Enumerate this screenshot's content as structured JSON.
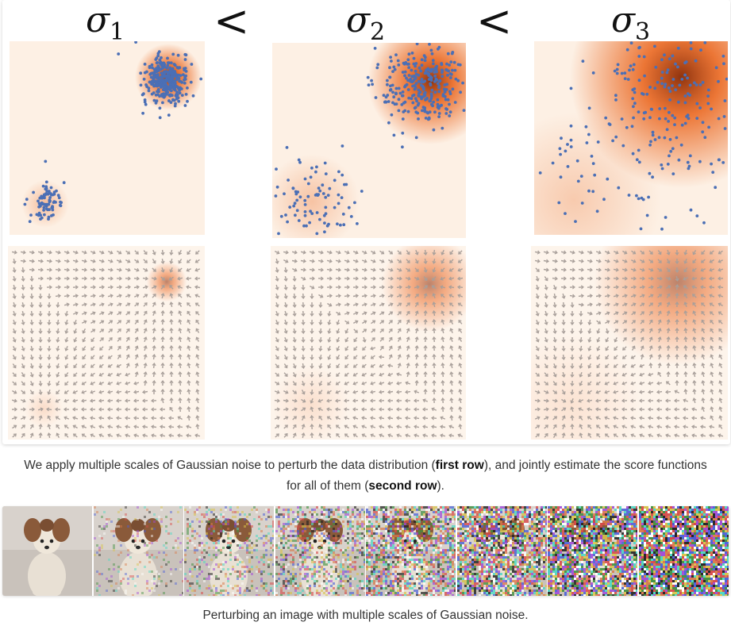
{
  "figure_top": {
    "sigma_labels": [
      {
        "symbol": "σ",
        "index": "1"
      },
      {
        "symbol": "σ",
        "index": "2"
      },
      {
        "symbol": "σ",
        "index": "3"
      }
    ],
    "comparison_symbols": [
      "<",
      "<"
    ],
    "panels": [
      {
        "noise_level": 1
      },
      {
        "noise_level": 2
      },
      {
        "noise_level": 3
      }
    ],
    "colors": {
      "density_low": "#fdf0e4",
      "density_high": "#e8590c",
      "density_peak": "#8a2a04",
      "sample_points": "#4b6fb5",
      "arrows": "#a89f9a"
    }
  },
  "caption_1": {
    "pre": "We apply multiple scales of Gaussian noise to perturb the data distribution (",
    "bold_1": "first row",
    "mid": "), and jointly estimate the score functions for all of them (",
    "bold_2": "second row",
    "post": ")."
  },
  "image_strip": {
    "tile_count": 8,
    "noise_fractions": [
      0.0,
      0.15,
      0.3,
      0.45,
      0.62,
      0.78,
      0.9,
      1.0
    ]
  },
  "caption_2": {
    "text": "Perturbing an image with multiple scales of Gaussian noise."
  }
}
